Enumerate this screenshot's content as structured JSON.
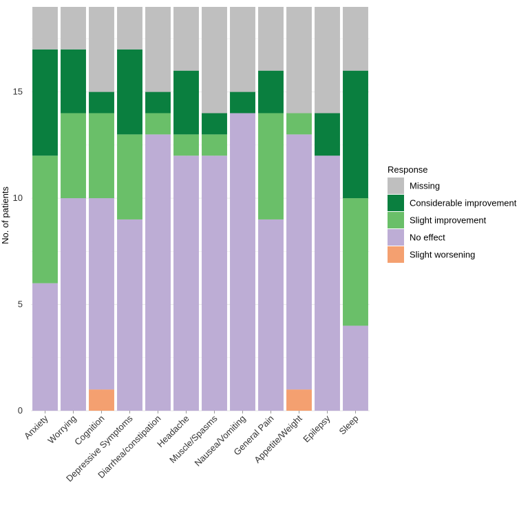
{
  "chart_data": {
    "type": "bar",
    "stacked": true,
    "title": "",
    "xlabel": "",
    "ylabel": "No. of patients",
    "ylim": [
      0,
      19
    ],
    "yticks": [
      0,
      5,
      10,
      15
    ],
    "grid": true,
    "legend_position": "right",
    "legend_title": "Response",
    "categories": [
      "Anxiety",
      "Worrying",
      "Cognition",
      "Depressive Symptoms",
      "Diarrhea/constipation",
      "Headache",
      "Muscle/Spasms",
      "Nausea/Vomiting",
      "General Pain",
      "Appetite/Weight",
      "Epilepsy",
      "Sleep"
    ],
    "series": [
      {
        "name": "Slight worsening",
        "color": "#F4A070",
        "values": [
          0,
          0,
          1,
          0,
          0,
          0,
          0,
          0,
          0,
          1,
          0,
          0
        ]
      },
      {
        "name": "No effect",
        "color": "#BDADD5",
        "values": [
          6,
          10,
          9,
          9,
          13,
          12,
          12,
          14,
          9,
          12,
          12,
          4
        ]
      },
      {
        "name": "Slight improvement",
        "color": "#6ABF69",
        "values": [
          6,
          4,
          4,
          4,
          1,
          1,
          1,
          0,
          5,
          1,
          0,
          6
        ]
      },
      {
        "name": "Considerable improvement",
        "color": "#0A7F3F",
        "values": [
          5,
          3,
          1,
          4,
          1,
          3,
          1,
          1,
          2,
          0,
          2,
          6
        ]
      },
      {
        "name": "Missing",
        "color": "#BFBFBF",
        "values": [
          2,
          2,
          4,
          2,
          4,
          3,
          5,
          4,
          3,
          5,
          5,
          3
        ]
      }
    ],
    "legend_order": [
      "Missing",
      "Considerable improvement",
      "Slight improvement",
      "No effect",
      "Slight worsening"
    ]
  }
}
